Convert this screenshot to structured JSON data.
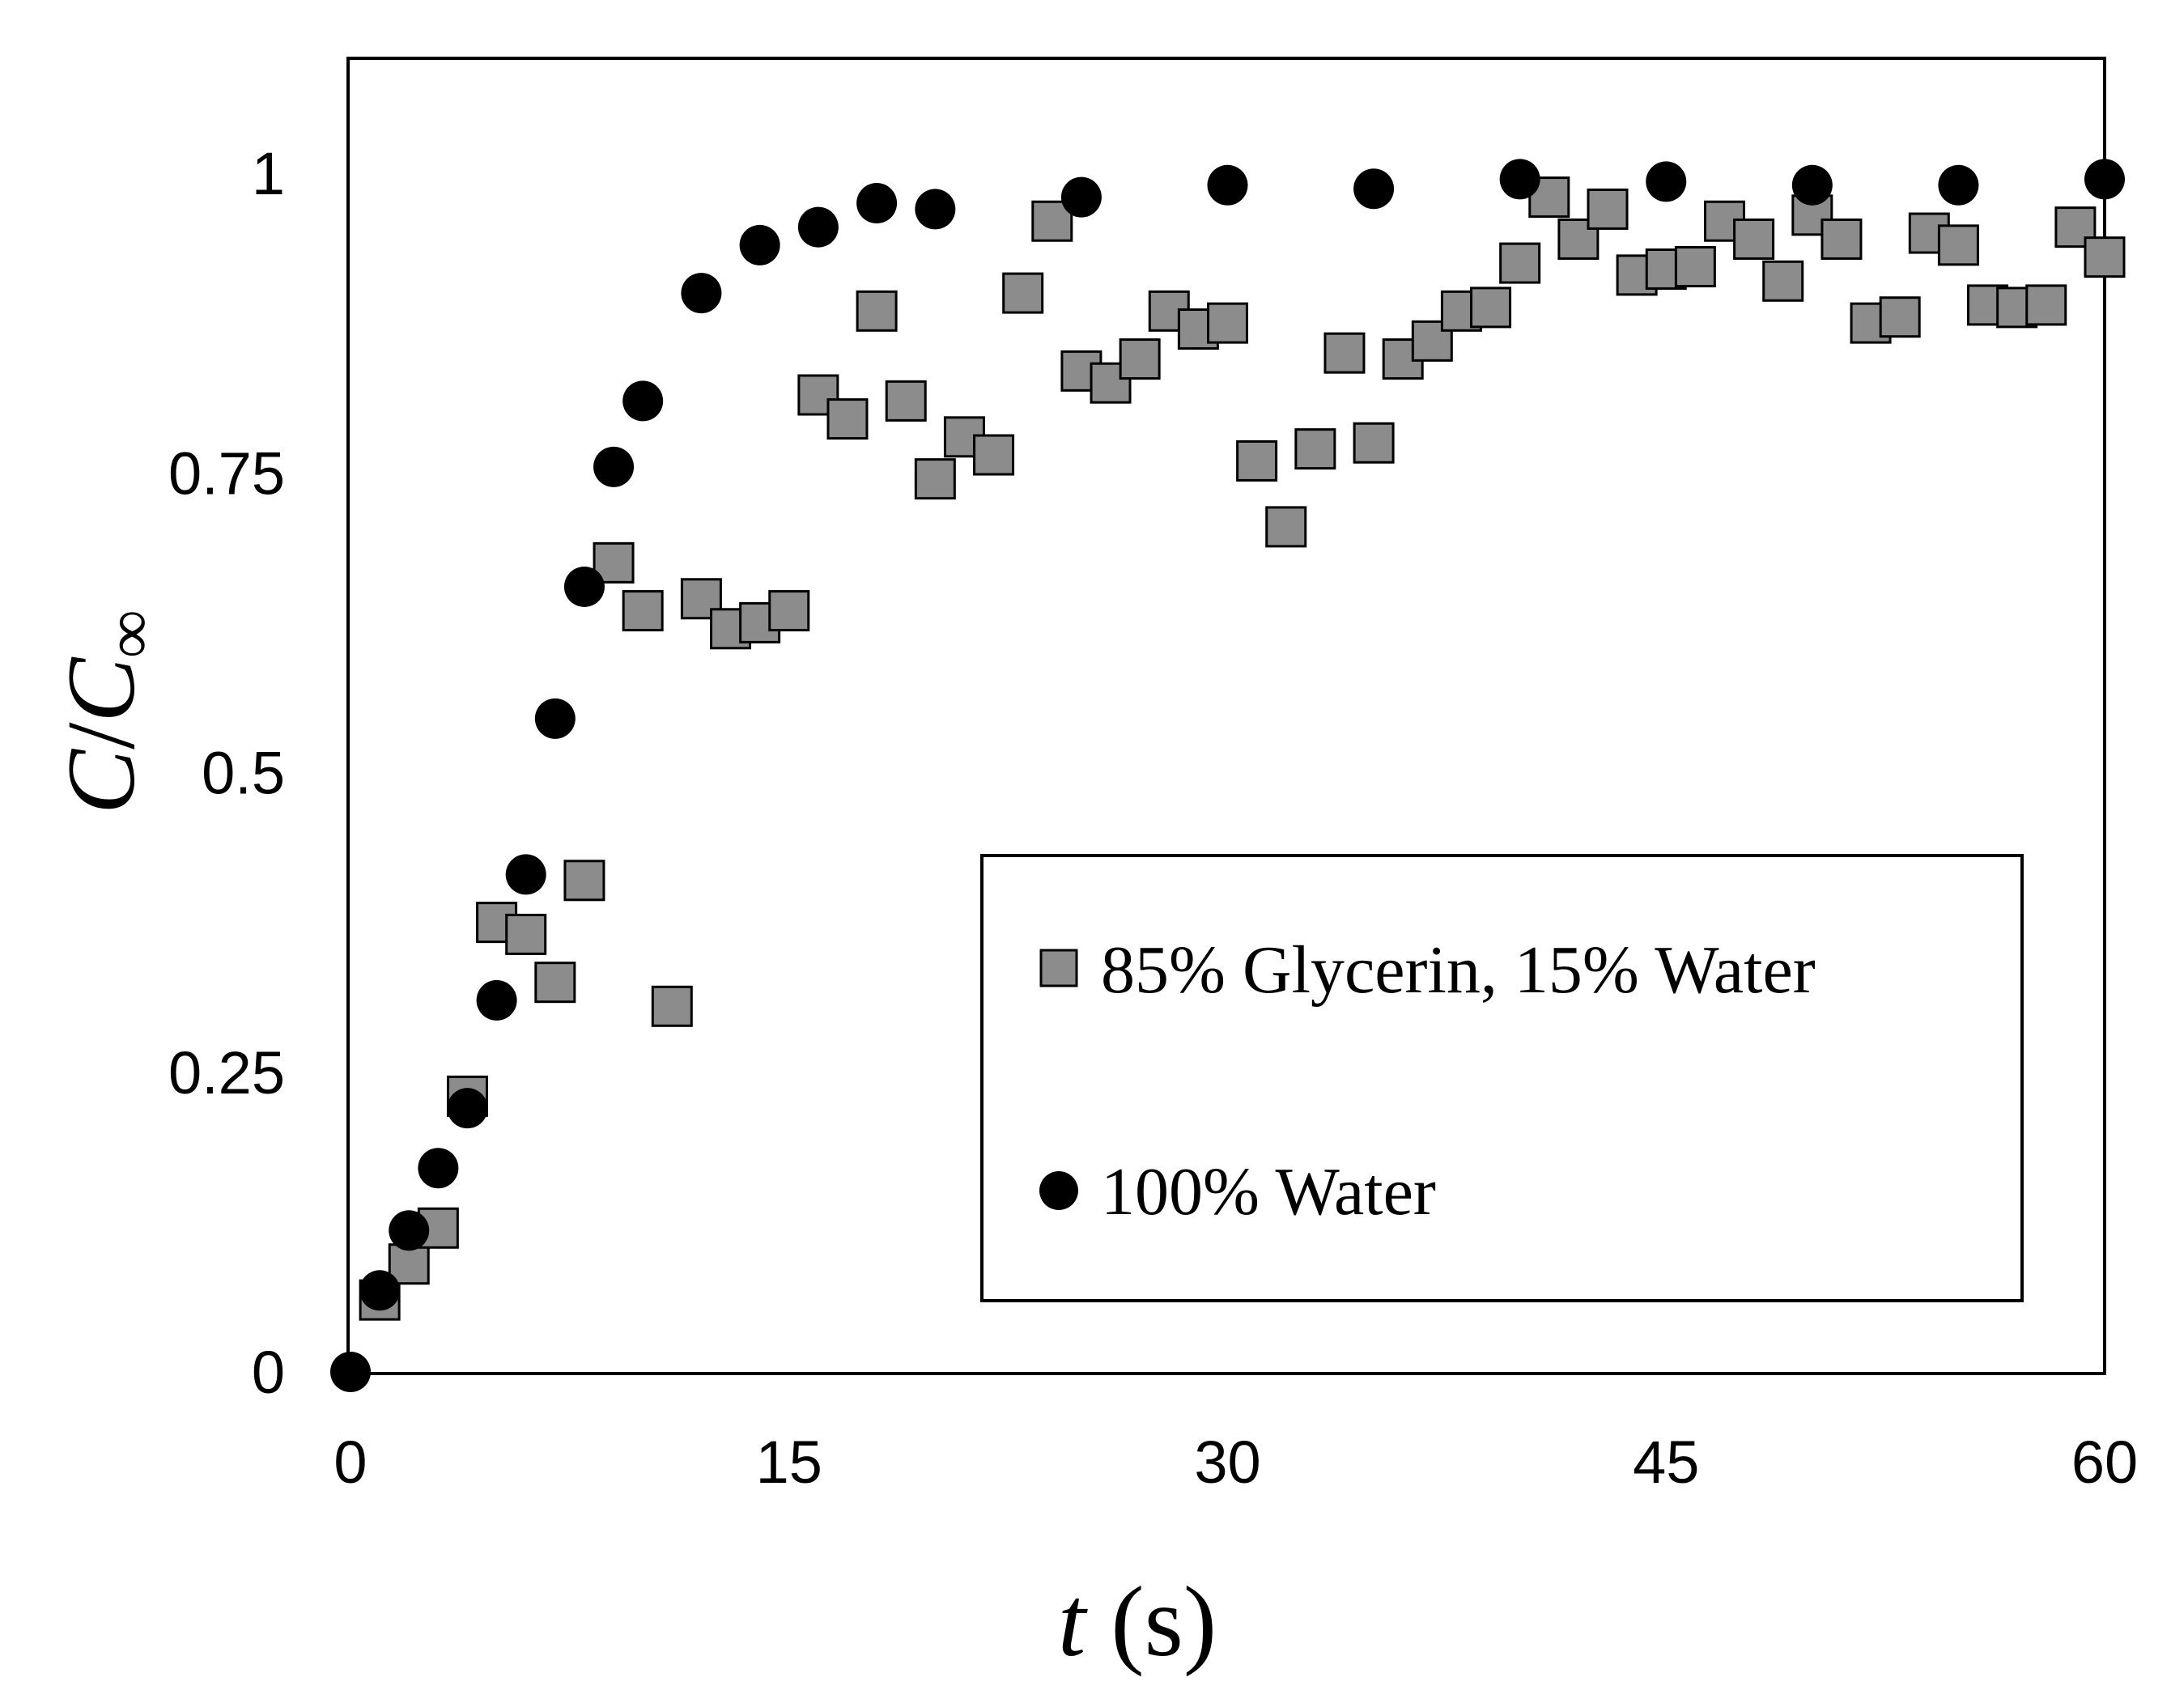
{
  "chart_data": {
    "type": "scatter",
    "title": "",
    "xlabel": {
      "var": "t",
      "unit": " (s)"
    },
    "ylabel": {
      "c1": "C",
      "slash": "/",
      "c2": "C",
      "sub": "∞"
    },
    "xlim": [
      0,
      60
    ],
    "ylim": [
      0,
      1.1
    ],
    "xticks": [
      0,
      15,
      30,
      45,
      60
    ],
    "xtick_labels": [
      "0",
      "15",
      "30",
      "45",
      "60"
    ],
    "yticks": [
      0,
      0.25,
      0.5,
      0.75,
      1
    ],
    "ytick_labels": [
      "0",
      "0.25",
      "0.5",
      "0.75",
      "1"
    ],
    "grid": false,
    "legend_position": "bottom-right",
    "series": [
      {
        "name": "85% Glycerin, 15% Water",
        "marker": "square",
        "color": "#8c8c8c",
        "points": [
          [
            1,
            0.06
          ],
          [
            2,
            0.09
          ],
          [
            3,
            0.12
          ],
          [
            4,
            0.23
          ],
          [
            5,
            0.375
          ],
          [
            6,
            0.365
          ],
          [
            7,
            0.325
          ],
          [
            8,
            0.41
          ],
          [
            9,
            0.675
          ],
          [
            10,
            0.635
          ],
          [
            11,
            0.305
          ],
          [
            12,
            0.645
          ],
          [
            13,
            0.62
          ],
          [
            14,
            0.625
          ],
          [
            15,
            0.635
          ],
          [
            16,
            0.815
          ],
          [
            17,
            0.795
          ],
          [
            18,
            0.885
          ],
          [
            19,
            0.81
          ],
          [
            20,
            0.745
          ],
          [
            21,
            0.78
          ],
          [
            22,
            0.765
          ],
          [
            23,
            0.9
          ],
          [
            24,
            0.96
          ],
          [
            25,
            0.835
          ],
          [
            26,
            0.825
          ],
          [
            27,
            0.845
          ],
          [
            28,
            0.885
          ],
          [
            29,
            0.87
          ],
          [
            30,
            0.875
          ],
          [
            31,
            0.76
          ],
          [
            32,
            0.705
          ],
          [
            33,
            0.77
          ],
          [
            34,
            0.85
          ],
          [
            35,
            0.775
          ],
          [
            36,
            0.845
          ],
          [
            37,
            0.86
          ],
          [
            38,
            0.885
          ],
          [
            39,
            0.888
          ],
          [
            40,
            0.925
          ],
          [
            41,
            0.98
          ],
          [
            42,
            0.945
          ],
          [
            43,
            0.97
          ],
          [
            44,
            0.915
          ],
          [
            45,
            0.92
          ],
          [
            46,
            0.922
          ],
          [
            47,
            0.96
          ],
          [
            48,
            0.945
          ],
          [
            49,
            0.91
          ],
          [
            50,
            0.965
          ],
          [
            51,
            0.945
          ],
          [
            52,
            0.875
          ],
          [
            53,
            0.88
          ],
          [
            54,
            0.95
          ],
          [
            55,
            0.94
          ],
          [
            56,
            0.89
          ],
          [
            57,
            0.888
          ],
          [
            58,
            0.89
          ],
          [
            59,
            0.955
          ],
          [
            60,
            0.93
          ]
        ]
      },
      {
        "name": "100% Water",
        "marker": "circle",
        "color": "#000000",
        "points": [
          [
            0,
            0
          ],
          [
            1,
            0.068
          ],
          [
            2,
            0.118
          ],
          [
            3,
            0.17
          ],
          [
            4,
            0.22
          ],
          [
            5,
            0.31
          ],
          [
            6,
            0.415
          ],
          [
            7,
            0.545
          ],
          [
            8,
            0.655
          ],
          [
            9,
            0.755
          ],
          [
            10,
            0.81
          ],
          [
            12,
            0.9
          ],
          [
            14,
            0.94
          ],
          [
            16,
            0.955
          ],
          [
            18,
            0.975
          ],
          [
            20,
            0.97
          ],
          [
            25,
            0.98
          ],
          [
            30,
            0.99
          ],
          [
            35,
            0.987
          ],
          [
            40,
            0.995
          ],
          [
            45,
            0.993
          ],
          [
            50,
            0.99
          ],
          [
            55,
            0.99
          ],
          [
            60,
            0.995
          ]
        ]
      }
    ]
  }
}
